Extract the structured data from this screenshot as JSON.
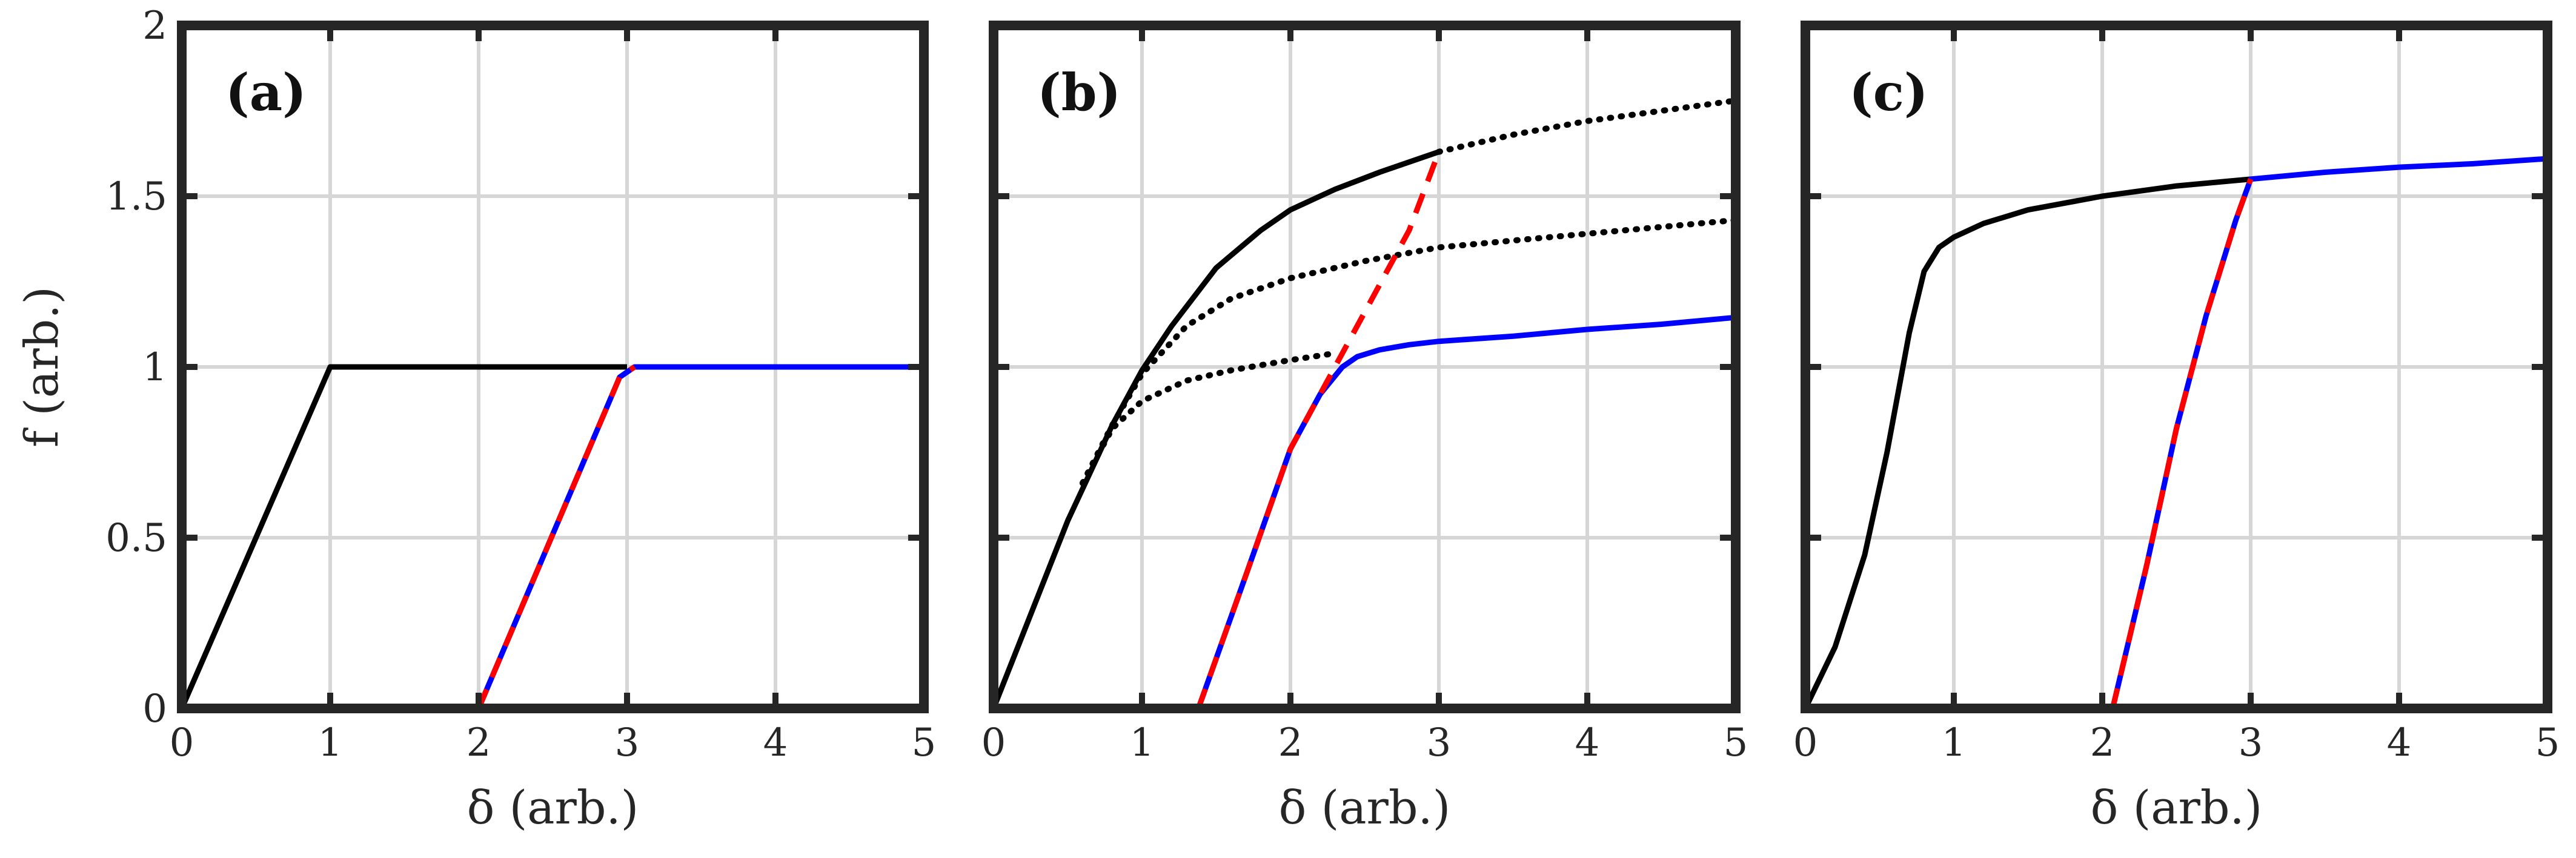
{
  "chart_data": [
    {
      "type": "line",
      "panel_label": "(a)",
      "xlabel": "δ (arb.)",
      "ylabel": "f (arb.)",
      "xlim": [
        0,
        5
      ],
      "ylim": [
        0,
        2
      ],
      "xticks": [
        0,
        1,
        2,
        3,
        4,
        5
      ],
      "yticks": [
        0,
        0.5,
        1,
        1.5,
        2
      ],
      "ytick_labels": [
        "0",
        "0.5",
        "1",
        "1.5",
        "2"
      ],
      "grid": true,
      "series": [
        {
          "color": "#000000",
          "style": "solid",
          "x": [
            0,
            1,
            3
          ],
          "y": [
            0,
            1,
            1
          ]
        },
        {
          "color": "#0000ff",
          "style": "solid",
          "x": [
            2,
            2.95,
            3.05,
            5
          ],
          "y": [
            0,
            0.97,
            1,
            1
          ]
        },
        {
          "color": "#ff0000",
          "style": "dashed",
          "x": [
            2,
            2.95,
            3.05
          ],
          "y": [
            0,
            0.97,
            1
          ]
        }
      ]
    },
    {
      "type": "line",
      "panel_label": "(b)",
      "xlabel": "δ (arb.)",
      "ylabel": "",
      "xlim": [
        0,
        5
      ],
      "ylim": [
        0,
        2
      ],
      "xticks": [
        0,
        1,
        2,
        3,
        4,
        5
      ],
      "yticks": [
        0,
        0.5,
        1,
        1.5,
        2
      ],
      "ytick_labels": [],
      "grid": true,
      "series": [
        {
          "color": "#000000",
          "style": "solid",
          "x": [
            0,
            0.5,
            0.8,
            1.0,
            1.2,
            1.5,
            1.8,
            2.0,
            2.3,
            2.6,
            3.0
          ],
          "y": [
            0,
            0.55,
            0.83,
            0.99,
            1.12,
            1.29,
            1.4,
            1.46,
            1.52,
            1.57,
            1.63
          ]
        },
        {
          "color": "#000000",
          "style": "dotted",
          "x": [
            3.0,
            3.5,
            4.0,
            4.5,
            5.0
          ],
          "y": [
            1.63,
            1.68,
            1.72,
            1.75,
            1.78
          ]
        },
        {
          "color": "#000000",
          "style": "dotted",
          "x": [
            0.6,
            0.8,
            1.0,
            1.3,
            1.6,
            2.0,
            2.5,
            3.0,
            3.5,
            4.0,
            4.5,
            5.0
          ],
          "y": [
            0.66,
            0.83,
            0.98,
            1.12,
            1.2,
            1.26,
            1.31,
            1.35,
            1.37,
            1.39,
            1.41,
            1.43
          ]
        },
        {
          "color": "#000000",
          "style": "dotted",
          "x": [
            0.6,
            0.8,
            1.0,
            1.3,
            1.6,
            2.0,
            2.3
          ],
          "y": [
            0.66,
            0.82,
            0.9,
            0.96,
            0.99,
            1.02,
            1.04
          ]
        },
        {
          "color": "#0000ff",
          "style": "solid",
          "x": [
            1.38,
            1.7,
            2.0,
            2.2,
            2.35,
            2.45,
            2.6,
            2.8,
            3.0,
            3.5,
            4.0,
            4.5,
            5.0
          ],
          "y": [
            0,
            0.39,
            0.76,
            0.92,
            1.0,
            1.03,
            1.05,
            1.065,
            1.075,
            1.09,
            1.11,
            1.125,
            1.145
          ]
        },
        {
          "color": "#ff0000",
          "style": "dashed",
          "x": [
            1.38,
            1.7,
            2.0,
            2.2,
            2.5,
            2.8,
            3.0
          ],
          "y": [
            0,
            0.39,
            0.76,
            0.92,
            1.16,
            1.4,
            1.63
          ]
        }
      ]
    },
    {
      "type": "line",
      "panel_label": "(c)",
      "xlabel": "δ (arb.)",
      "ylabel": "",
      "xlim": [
        0,
        5
      ],
      "ylim": [
        0,
        2
      ],
      "xticks": [
        0,
        1,
        2,
        3,
        4,
        5
      ],
      "yticks": [
        0,
        0.5,
        1,
        1.5,
        2
      ],
      "ytick_labels": [],
      "grid": true,
      "series": [
        {
          "color": "#000000",
          "style": "solid",
          "x": [
            0,
            0.2,
            0.4,
            0.55,
            0.7,
            0.8,
            0.9,
            1.0,
            1.2,
            1.5,
            2.0,
            2.5,
            3.0
          ],
          "y": [
            0,
            0.18,
            0.45,
            0.75,
            1.1,
            1.28,
            1.35,
            1.38,
            1.42,
            1.46,
            1.5,
            1.53,
            1.55
          ]
        },
        {
          "color": "#0000ff",
          "style": "solid",
          "x": [
            2.07,
            2.3,
            2.5,
            2.7,
            2.9,
            3.0,
            3.5,
            4.0,
            4.5,
            5.0
          ],
          "y": [
            0,
            0.42,
            0.82,
            1.15,
            1.43,
            1.55,
            1.57,
            1.585,
            1.595,
            1.61
          ]
        },
        {
          "color": "#ff0000",
          "style": "dashed",
          "x": [
            2.07,
            2.3,
            2.5,
            2.7,
            2.9,
            3.0
          ],
          "y": [
            0,
            0.42,
            0.82,
            1.15,
            1.43,
            1.55
          ]
        }
      ]
    }
  ]
}
